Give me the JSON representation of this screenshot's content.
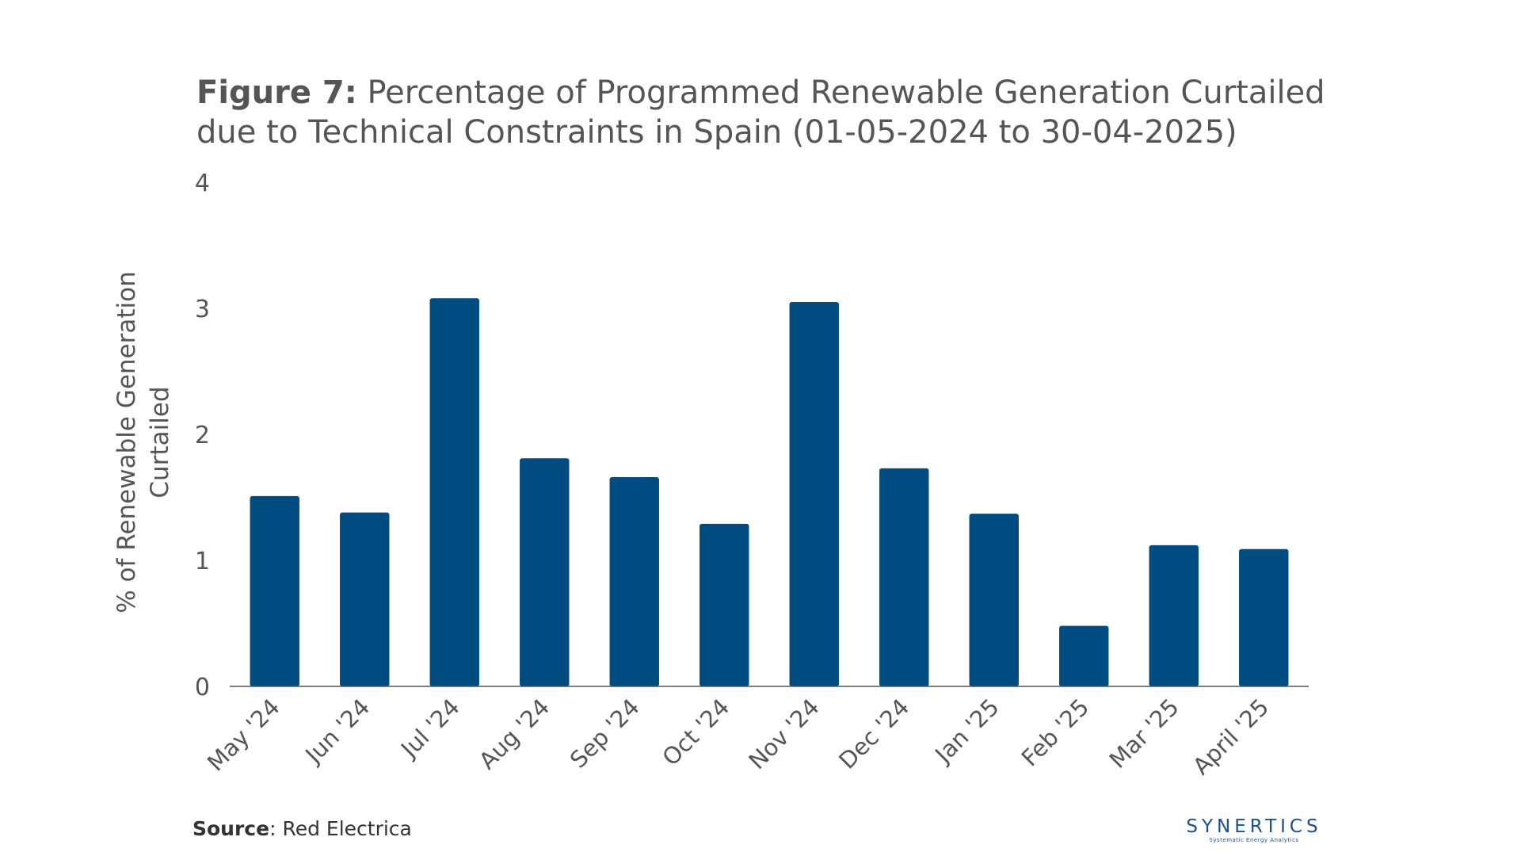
{
  "title": {
    "prefix": "Figure 7:",
    "text": " Percentage of Programmed Renewable Generation Curtailed due to Technical Constraints in Spain (01-05-2024 to 30-04-2025)"
  },
  "source": {
    "label": "Source",
    "text": ": Red Electrica"
  },
  "logo": {
    "name": "SYNERTICS",
    "tagline": "Systematic Energy Analytics"
  },
  "colors": {
    "bar": "#004b80",
    "axis": "#555555"
  },
  "chart_data": {
    "type": "bar",
    "title": "Percentage of Programmed Renewable Generation Curtailed due to Technical Constraints in Spain (01-05-2024 to 30-04-2025)",
    "categories": [
      "May '24",
      "Jun '24",
      "Jul '24",
      "Aug '24",
      "Sep '24",
      "Oct '24",
      "Nov '24",
      "Dec '24",
      "Jan '25",
      "Feb '25",
      "Mar '25",
      "April '25"
    ],
    "values": [
      1.51,
      1.38,
      3.08,
      1.81,
      1.66,
      1.29,
      3.05,
      1.73,
      1.37,
      0.48,
      1.12,
      1.09
    ],
    "xlabel": "",
    "ylabel_lines": [
      "% of  Renewable Generation",
      "Curtailed"
    ],
    "ylim": [
      0,
      4
    ],
    "yticks": [
      "0",
      "1",
      "2",
      "3",
      "4"
    ],
    "grid": false
  }
}
